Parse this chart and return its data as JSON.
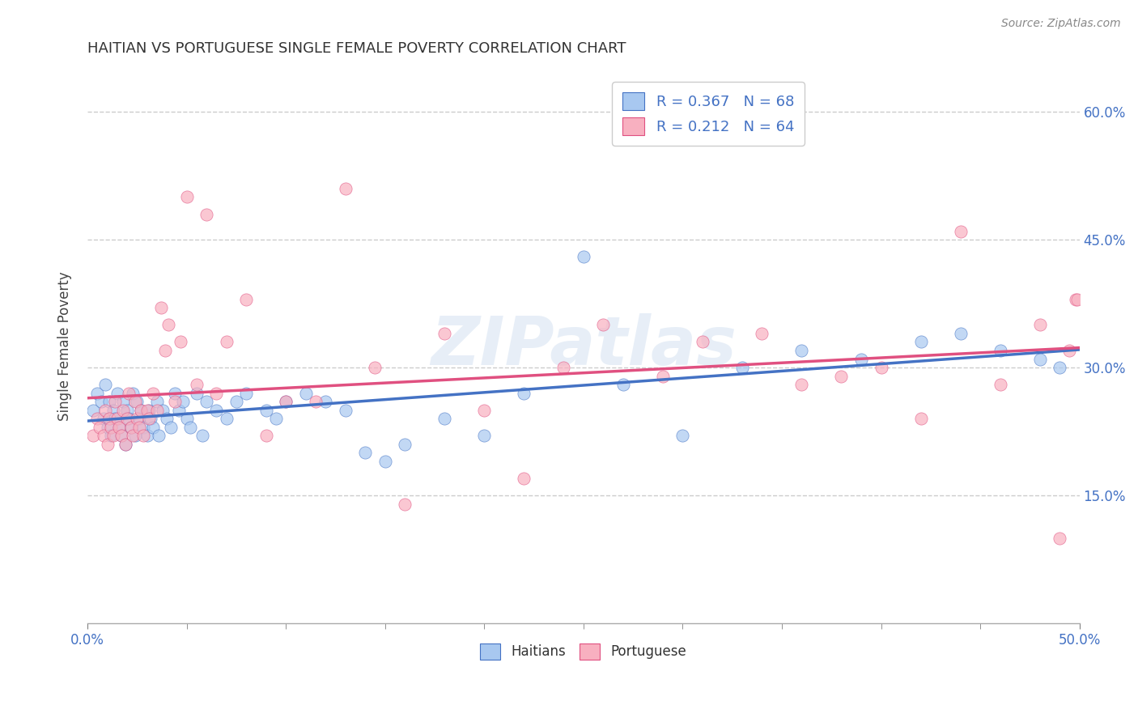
{
  "title": "HAITIAN VS PORTUGUESE SINGLE FEMALE POVERTY CORRELATION CHART",
  "source": "Source: ZipAtlas.com",
  "ylabel": "Single Female Poverty",
  "xlim": [
    0.0,
    0.5
  ],
  "ylim": [
    0.0,
    0.65
  ],
  "xtick_vals": [
    0.0,
    0.5
  ],
  "xtick_labels": [
    "0.0%",
    "50.0%"
  ],
  "ytick_vals": [
    0.15,
    0.3,
    0.45,
    0.6
  ],
  "ytick_labels": [
    "15.0%",
    "30.0%",
    "45.0%",
    "60.0%"
  ],
  "R_haitian": 0.367,
  "N_haitian": 68,
  "R_portuguese": 0.212,
  "N_portuguese": 64,
  "haitian_color": "#a8c8f0",
  "portuguese_color": "#f8b0c0",
  "line_haitian_color": "#4472c4",
  "line_portuguese_color": "#e05080",
  "watermark": "ZIPatlas",
  "background_color": "#ffffff",
  "haitian_x": [
    0.003,
    0.005,
    0.007,
    0.008,
    0.009,
    0.01,
    0.011,
    0.012,
    0.013,
    0.014,
    0.015,
    0.016,
    0.017,
    0.018,
    0.019,
    0.02,
    0.021,
    0.022,
    0.023,
    0.024,
    0.025,
    0.026,
    0.027,
    0.028,
    0.03,
    0.031,
    0.032,
    0.033,
    0.035,
    0.036,
    0.038,
    0.04,
    0.042,
    0.044,
    0.046,
    0.048,
    0.05,
    0.052,
    0.055,
    0.058,
    0.06,
    0.065,
    0.07,
    0.075,
    0.08,
    0.09,
    0.095,
    0.1,
    0.11,
    0.12,
    0.13,
    0.14,
    0.15,
    0.16,
    0.18,
    0.2,
    0.22,
    0.25,
    0.27,
    0.3,
    0.33,
    0.36,
    0.39,
    0.42,
    0.44,
    0.46,
    0.48,
    0.49
  ],
  "haitian_y": [
    0.25,
    0.27,
    0.26,
    0.24,
    0.28,
    0.23,
    0.26,
    0.22,
    0.25,
    0.24,
    0.27,
    0.23,
    0.22,
    0.26,
    0.21,
    0.25,
    0.24,
    0.23,
    0.27,
    0.22,
    0.26,
    0.24,
    0.25,
    0.23,
    0.22,
    0.25,
    0.24,
    0.23,
    0.26,
    0.22,
    0.25,
    0.24,
    0.23,
    0.27,
    0.25,
    0.26,
    0.24,
    0.23,
    0.27,
    0.22,
    0.26,
    0.25,
    0.24,
    0.26,
    0.27,
    0.25,
    0.24,
    0.26,
    0.27,
    0.26,
    0.25,
    0.2,
    0.19,
    0.21,
    0.24,
    0.22,
    0.27,
    0.43,
    0.28,
    0.22,
    0.3,
    0.32,
    0.31,
    0.33,
    0.34,
    0.32,
    0.31,
    0.3
  ],
  "portuguese_x": [
    0.003,
    0.005,
    0.006,
    0.008,
    0.009,
    0.01,
    0.011,
    0.012,
    0.013,
    0.014,
    0.015,
    0.016,
    0.017,
    0.018,
    0.019,
    0.02,
    0.021,
    0.022,
    0.023,
    0.024,
    0.025,
    0.026,
    0.027,
    0.028,
    0.03,
    0.031,
    0.033,
    0.035,
    0.037,
    0.039,
    0.041,
    0.044,
    0.047,
    0.05,
    0.055,
    0.06,
    0.065,
    0.07,
    0.08,
    0.09,
    0.1,
    0.115,
    0.13,
    0.145,
    0.16,
    0.18,
    0.2,
    0.22,
    0.24,
    0.26,
    0.29,
    0.31,
    0.34,
    0.36,
    0.38,
    0.4,
    0.42,
    0.44,
    0.46,
    0.48,
    0.49,
    0.495,
    0.498,
    0.499
  ],
  "portuguese_y": [
    0.22,
    0.24,
    0.23,
    0.22,
    0.25,
    0.21,
    0.24,
    0.23,
    0.22,
    0.26,
    0.24,
    0.23,
    0.22,
    0.25,
    0.21,
    0.24,
    0.27,
    0.23,
    0.22,
    0.26,
    0.24,
    0.23,
    0.25,
    0.22,
    0.25,
    0.24,
    0.27,
    0.25,
    0.37,
    0.32,
    0.35,
    0.26,
    0.33,
    0.5,
    0.28,
    0.48,
    0.27,
    0.33,
    0.38,
    0.22,
    0.26,
    0.26,
    0.51,
    0.3,
    0.14,
    0.34,
    0.25,
    0.17,
    0.3,
    0.35,
    0.29,
    0.33,
    0.34,
    0.28,
    0.29,
    0.3,
    0.24,
    0.46,
    0.28,
    0.35,
    0.1,
    0.32,
    0.38,
    0.38
  ]
}
